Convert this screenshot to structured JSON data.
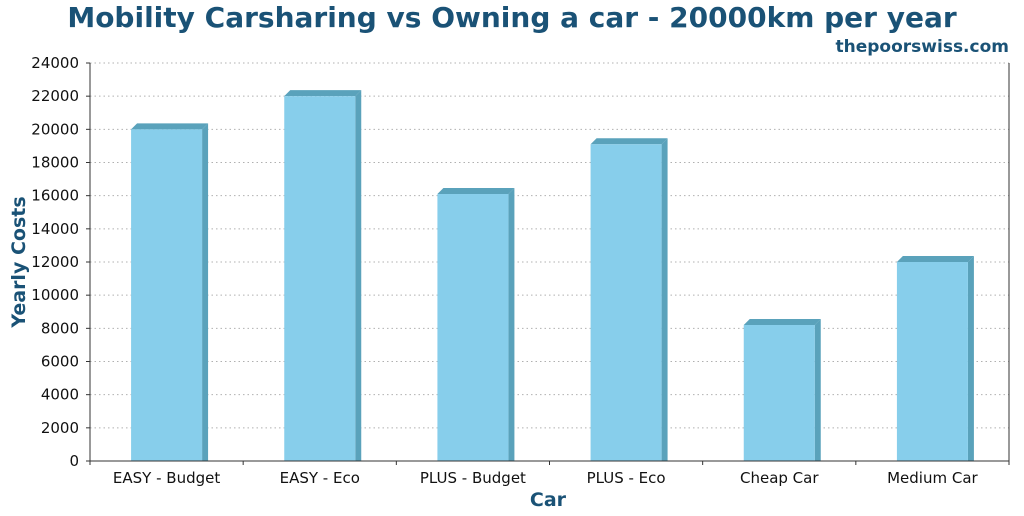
{
  "chart_data": {
    "type": "bar",
    "title": "Mobility Carsharing vs Owning a car - 20000km per year",
    "subtitle": "thepoorswiss.com",
    "xlabel": "Car",
    "ylabel": "Yearly Costs",
    "categories": [
      "EASY - Budget",
      "EASY - Eco",
      "PLUS - Budget",
      "PLUS - Eco",
      "Cheap Car",
      "Medium Car"
    ],
    "values": [
      20000,
      22000,
      16100,
      19100,
      8200,
      12000
    ],
    "ylim": [
      0,
      24000
    ],
    "yticks": [
      "0",
      "2000",
      "4000",
      "6000",
      "8000",
      "10000",
      "12000",
      "14000",
      "16000",
      "18000",
      "20000",
      "22000",
      "24000"
    ],
    "grid": true,
    "legend": "none",
    "colors": {
      "title": "#1a5276",
      "bar_front": "#87ceeb",
      "bar_side": "#5aa2bb",
      "bar_top": "#5aa2bb",
      "grid": "#b0b0b0",
      "axis": "#333333"
    }
  }
}
